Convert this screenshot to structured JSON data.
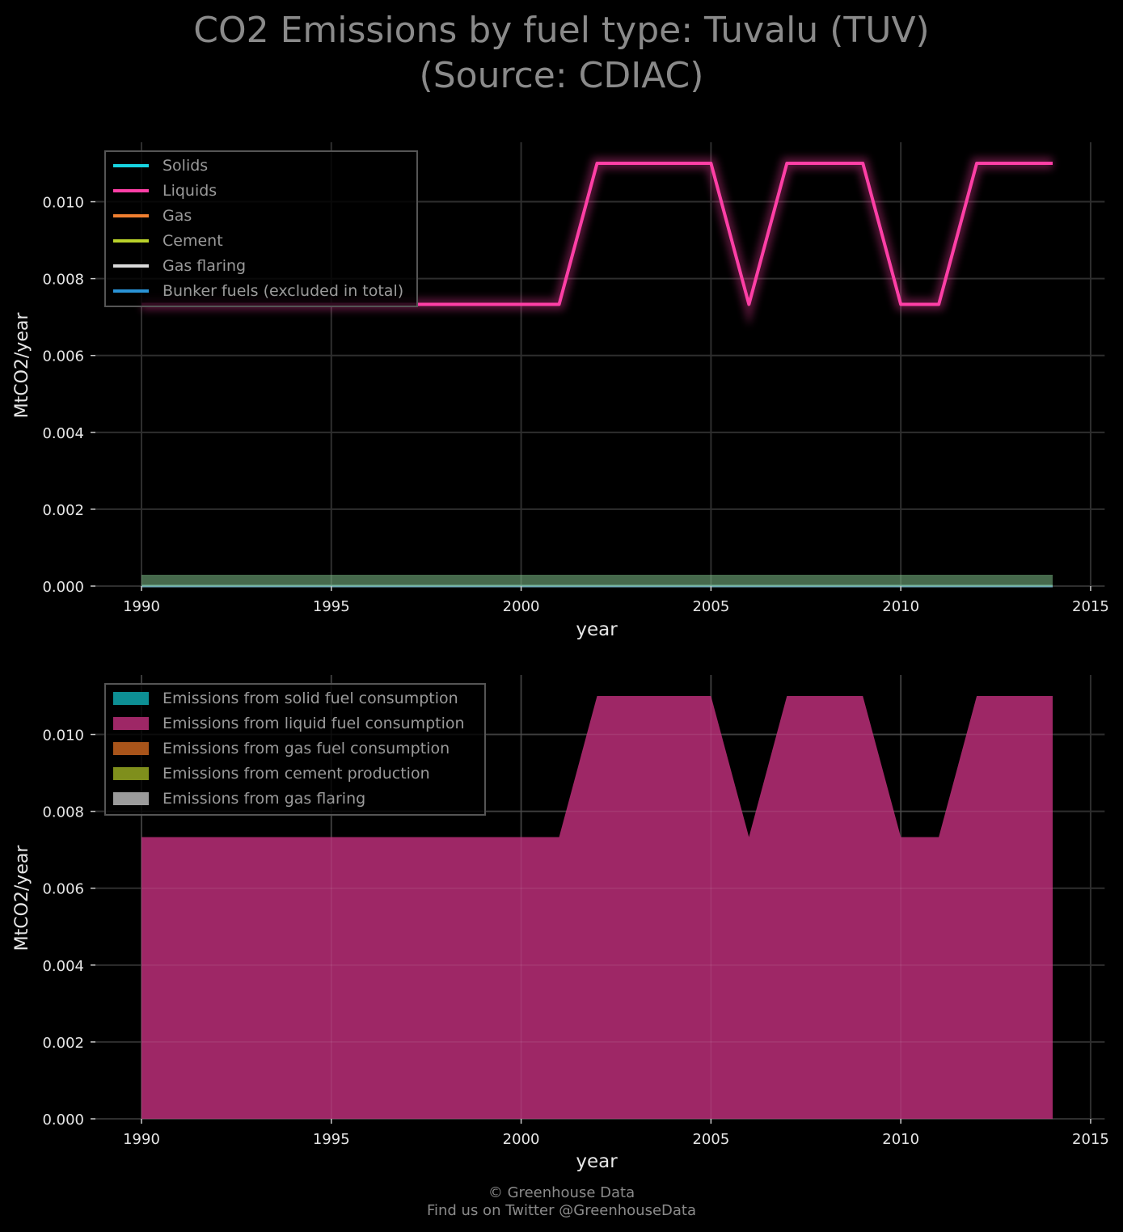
{
  "title": {
    "line1": "CO2 Emissions by fuel type: Tuvalu (TUV)",
    "line2": "(Source: CDIAC)"
  },
  "footer": {
    "line1": "© Greenhouse Data",
    "line2": "Find us on Twitter @GreenhouseData"
  },
  "colors": {
    "background": "#000000",
    "grid": "#2e2e2e",
    "solids": "#17d4e0",
    "liquids": "#ff3fa6",
    "gas": "#f07f30",
    "cement": "#b9d12a",
    "flaring": "#d9d9d9",
    "bunker": "#2a93d6",
    "area_solid": "#0d8f94",
    "area_liquid": "#9e2766",
    "area_gas": "#a8541a",
    "area_cement": "#7f8f1c",
    "area_flaring": "#9a9a9a"
  },
  "chart_data": [
    {
      "type": "line",
      "xlabel": "year",
      "ylabel": "MtCO2/year",
      "xlim": [
        1988.8,
        2015.2
      ],
      "ylim": [
        0,
        0.0115
      ],
      "xticks": [
        1990,
        1995,
        2000,
        2005,
        2010,
        2015
      ],
      "yticks": [
        0.0,
        0.002,
        0.004,
        0.006,
        0.008,
        0.01
      ],
      "ytick_labels": [
        "0.000",
        "0.002",
        "0.004",
        "0.006",
        "0.008",
        "0.010"
      ],
      "grid": true,
      "legend": "top-left",
      "x": [
        1990,
        1991,
        1992,
        1993,
        1994,
        1995,
        1996,
        1997,
        1998,
        1999,
        2000,
        2001,
        2002,
        2003,
        2004,
        2005,
        2006,
        2007,
        2008,
        2009,
        2010,
        2011,
        2012,
        2013,
        2014
      ],
      "series": [
        {
          "name": "Solids",
          "color_key": "solids",
          "values": [
            0,
            0,
            0,
            0,
            0,
            0,
            0,
            0,
            0,
            0,
            0,
            0,
            0,
            0,
            0,
            0,
            0,
            0,
            0,
            0,
            0,
            0,
            0,
            0,
            0
          ]
        },
        {
          "name": "Liquids",
          "color_key": "liquids",
          "values": [
            0.00733,
            0.00733,
            0.00733,
            0.00733,
            0.00733,
            0.00733,
            0.00733,
            0.00733,
            0.00733,
            0.00733,
            0.00733,
            0.00733,
            0.011,
            0.011,
            0.011,
            0.011,
            0.00733,
            0.011,
            0.011,
            0.011,
            0.00733,
            0.00733,
            0.011,
            0.011,
            0.011
          ]
        },
        {
          "name": "Gas",
          "color_key": "gas",
          "values": [
            0,
            0,
            0,
            0,
            0,
            0,
            0,
            0,
            0,
            0,
            0,
            0,
            0,
            0,
            0,
            0,
            0,
            0,
            0,
            0,
            0,
            0,
            0,
            0,
            0
          ]
        },
        {
          "name": "Cement",
          "color_key": "cement",
          "values": [
            0,
            0,
            0,
            0,
            0,
            0,
            0,
            0,
            0,
            0,
            0,
            0,
            0,
            0,
            0,
            0,
            0,
            0,
            0,
            0,
            0,
            0,
            0,
            0,
            0
          ]
        },
        {
          "name": "Gas flaring",
          "color_key": "flaring",
          "values": [
            0,
            0,
            0,
            0,
            0,
            0,
            0,
            0,
            0,
            0,
            0,
            0,
            0,
            0,
            0,
            0,
            0,
            0,
            0,
            0,
            0,
            0,
            0,
            0,
            0
          ]
        },
        {
          "name": "Bunker fuels (excluded in total)",
          "color_key": "bunker",
          "values": [
            0,
            0,
            0,
            0,
            0,
            0,
            0,
            0,
            0,
            0,
            0,
            0,
            0,
            0,
            0,
            0,
            0,
            0,
            0,
            0,
            0,
            0,
            0,
            0,
            0
          ]
        }
      ]
    },
    {
      "type": "area",
      "xlabel": "year",
      "ylabel": "MtCO2/year",
      "xlim": [
        1988.8,
        2015.2
      ],
      "ylim": [
        0,
        0.0115
      ],
      "xticks": [
        1990,
        1995,
        2000,
        2005,
        2010,
        2015
      ],
      "yticks": [
        0.0,
        0.002,
        0.004,
        0.006,
        0.008,
        0.01
      ],
      "ytick_labels": [
        "0.000",
        "0.002",
        "0.004",
        "0.006",
        "0.008",
        "0.010"
      ],
      "grid": true,
      "legend": "top-left",
      "stacked": true,
      "x": [
        1990,
        1991,
        1992,
        1993,
        1994,
        1995,
        1996,
        1997,
        1998,
        1999,
        2000,
        2001,
        2002,
        2003,
        2004,
        2005,
        2006,
        2007,
        2008,
        2009,
        2010,
        2011,
        2012,
        2013,
        2014
      ],
      "series": [
        {
          "name": "Emissions from solid fuel consumption",
          "color_key": "area_solid",
          "values": [
            0,
            0,
            0,
            0,
            0,
            0,
            0,
            0,
            0,
            0,
            0,
            0,
            0,
            0,
            0,
            0,
            0,
            0,
            0,
            0,
            0,
            0,
            0,
            0,
            0
          ]
        },
        {
          "name": "Emissions from liquid fuel consumption",
          "color_key": "area_liquid",
          "values": [
            0.00733,
            0.00733,
            0.00733,
            0.00733,
            0.00733,
            0.00733,
            0.00733,
            0.00733,
            0.00733,
            0.00733,
            0.00733,
            0.00733,
            0.011,
            0.011,
            0.011,
            0.011,
            0.00733,
            0.011,
            0.011,
            0.011,
            0.00733,
            0.00733,
            0.011,
            0.011,
            0.011
          ]
        },
        {
          "name": "Emissions from gas fuel consumption",
          "color_key": "area_gas",
          "values": [
            0,
            0,
            0,
            0,
            0,
            0,
            0,
            0,
            0,
            0,
            0,
            0,
            0,
            0,
            0,
            0,
            0,
            0,
            0,
            0,
            0,
            0,
            0,
            0,
            0
          ]
        },
        {
          "name": "Emissions from cement production",
          "color_key": "area_cement",
          "values": [
            0,
            0,
            0,
            0,
            0,
            0,
            0,
            0,
            0,
            0,
            0,
            0,
            0,
            0,
            0,
            0,
            0,
            0,
            0,
            0,
            0,
            0,
            0,
            0,
            0
          ]
        },
        {
          "name": "Emissions from gas flaring",
          "color_key": "area_flaring",
          "values": [
            0,
            0,
            0,
            0,
            0,
            0,
            0,
            0,
            0,
            0,
            0,
            0,
            0,
            0,
            0,
            0,
            0,
            0,
            0,
            0,
            0,
            0,
            0,
            0,
            0
          ]
        }
      ]
    }
  ]
}
